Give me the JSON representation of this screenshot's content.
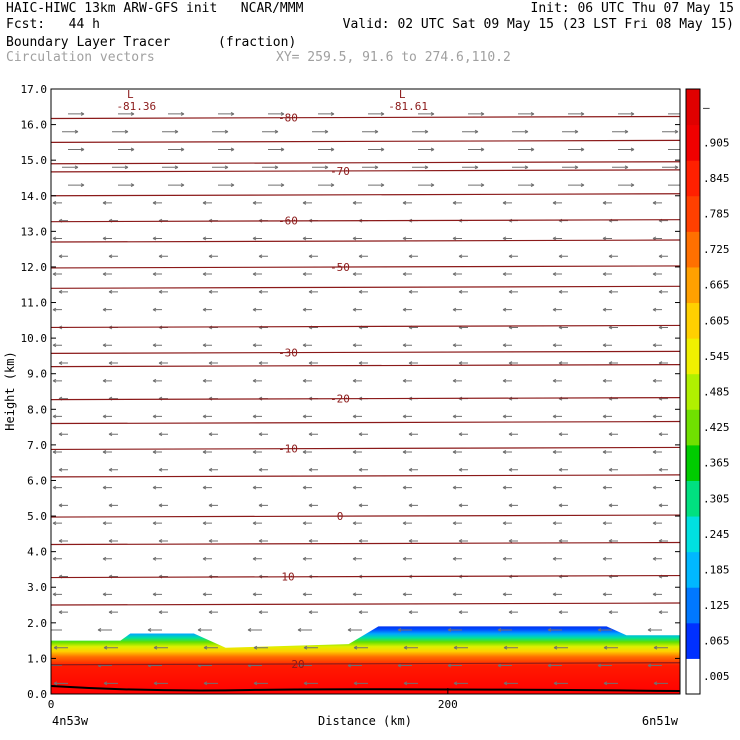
{
  "header": {
    "line1_left": "HAIC-HIWC 13km ARW-GFS init   NCAR/MMM",
    "line1_right": "Init: 06 UTC Thu 07 May 15",
    "line2_left": "Fcst:   44 h",
    "line2_right": "Valid: 02 UTC Sat 09 May 15 (23 LST Fri 08 May 15)",
    "line3_left": "Boundary Layer Tracer",
    "line3_mid": "(fraction)",
    "line4_left": "Circulation vectors",
    "line4_mid": "XY= 259.5, 91.6 to 274.6,110.2"
  },
  "chart_data": {
    "type": "heatmap",
    "xlabel": "Distance (km)",
    "ylabel": "Height (km)",
    "xlim": [
      0,
      317
    ],
    "ylim": [
      0,
      17
    ],
    "x_ticks": [
      {
        "value": 0,
        "label": "0"
      },
      {
        "value": 200,
        "label": "200"
      }
    ],
    "x_end_labels": {
      "left": "4n53w",
      "right": "6n51w"
    },
    "y_ticks": [
      "0.0",
      "1.0",
      "2.0",
      "3.0",
      "4.0",
      "5.0",
      "6.0",
      "7.0",
      "8.0",
      "9.0",
      "10.0",
      "11.0",
      "12.0",
      "13.0",
      "14.0",
      "15.0",
      "16.0",
      "17.0"
    ],
    "colorbar": {
      "labels": [
        ".005",
        ".065",
        ".125",
        ".185",
        ".245",
        ".305",
        ".365",
        ".425",
        ".485",
        ".545",
        ".605",
        ".665",
        ".725",
        ".785",
        ".845",
        ".905",
        "–"
      ],
      "colors": [
        "#ffffff",
        "#0030ff",
        "#0078ff",
        "#00b8ff",
        "#00e0e0",
        "#00e080",
        "#00cc00",
        "#70e000",
        "#b0f000",
        "#f0f000",
        "#ffd000",
        "#ffa000",
        "#ff7000",
        "#ff4000",
        "#ff2000",
        "#f00000",
        "#e00000"
      ]
    },
    "tracer_top_profile": [
      {
        "x": 0,
        "z": 1.5
      },
      {
        "x": 35,
        "z": 1.5
      },
      {
        "x": 40,
        "z": 1.7
      },
      {
        "x": 72,
        "z": 1.7
      },
      {
        "x": 88,
        "z": 1.3
      },
      {
        "x": 150,
        "z": 1.4
      },
      {
        "x": 165,
        "z": 1.9
      },
      {
        "x": 280,
        "z": 1.9
      },
      {
        "x": 290,
        "z": 1.65
      },
      {
        "x": 317,
        "z": 1.65
      }
    ],
    "temperature_contours": [
      {
        "label": "-80",
        "z": 16.2
      },
      {
        "label": "-70",
        "z": 14.7
      },
      {
        "label": "-60",
        "z": 13.3
      },
      {
        "label": "-50",
        "z": 12.0
      },
      {
        "label": "-30",
        "z": 9.6
      },
      {
        "label": "-20",
        "z": 8.3
      },
      {
        "label": "-10",
        "z": 6.9
      },
      {
        "label": "0",
        "z": 5.0
      },
      {
        "label": "10",
        "z": 3.3
      },
      {
        "label": "20",
        "z": 0.85
      }
    ],
    "unlabeled_contours": [
      15.5,
      14.9,
      14.0,
      12.7,
      11.4,
      10.3,
      9.2,
      7.6,
      6.1,
      4.2,
      2.5
    ],
    "minima": [
      {
        "label": "L",
        "value": "-81.36",
        "x": 43
      },
      {
        "label": "L",
        "value": "-81.61",
        "x": 180
      }
    ]
  }
}
